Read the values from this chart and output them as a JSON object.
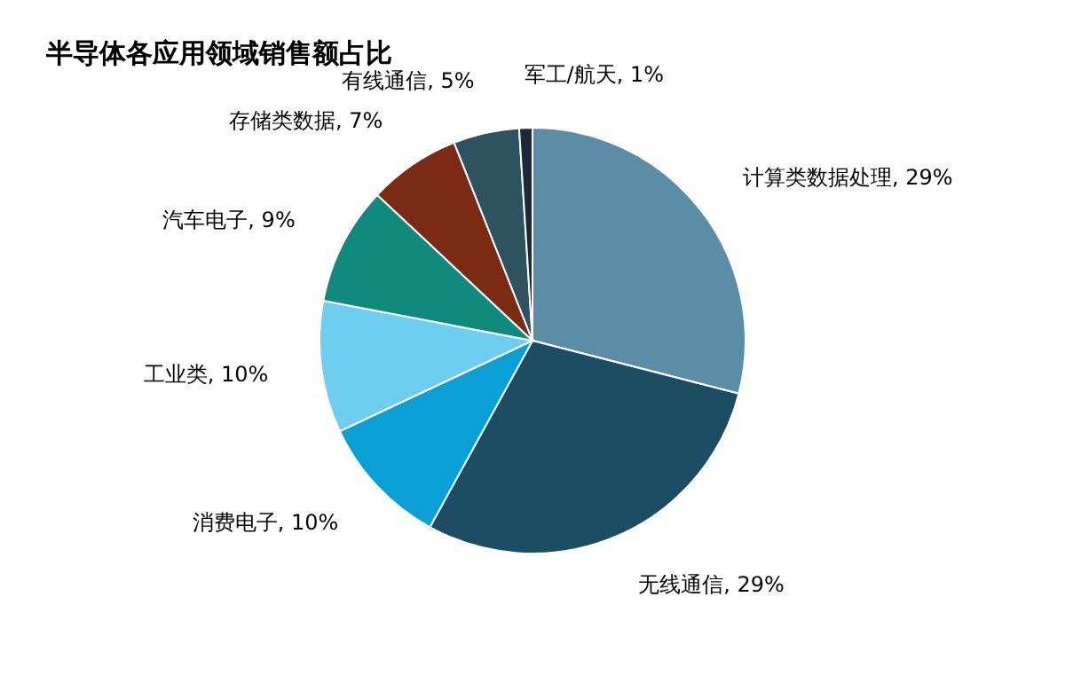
{
  "chart_data": {
    "type": "pie",
    "title": "半导体各应用领域销售额占比",
    "categories": [
      "计算类数据处理",
      "无线通信",
      "消费电子",
      "工业类",
      "汽车电子",
      "存储类数据",
      "有线通信",
      "军工/航天"
    ],
    "values": [
      29,
      29,
      10,
      10,
      9,
      7,
      5,
      1
    ],
    "value_labels": [
      "29%",
      "29%",
      "10%",
      "10%",
      "9%",
      "7%",
      "5%",
      "1%"
    ],
    "colors": [
      "#5b8ea6",
      "#1c4d63",
      "#0aa0d6",
      "#6fcdf0",
      "#0f8a7c",
      "#7b2a14",
      "#2f5260",
      "#1b2a3a"
    ],
    "legend": false
  }
}
